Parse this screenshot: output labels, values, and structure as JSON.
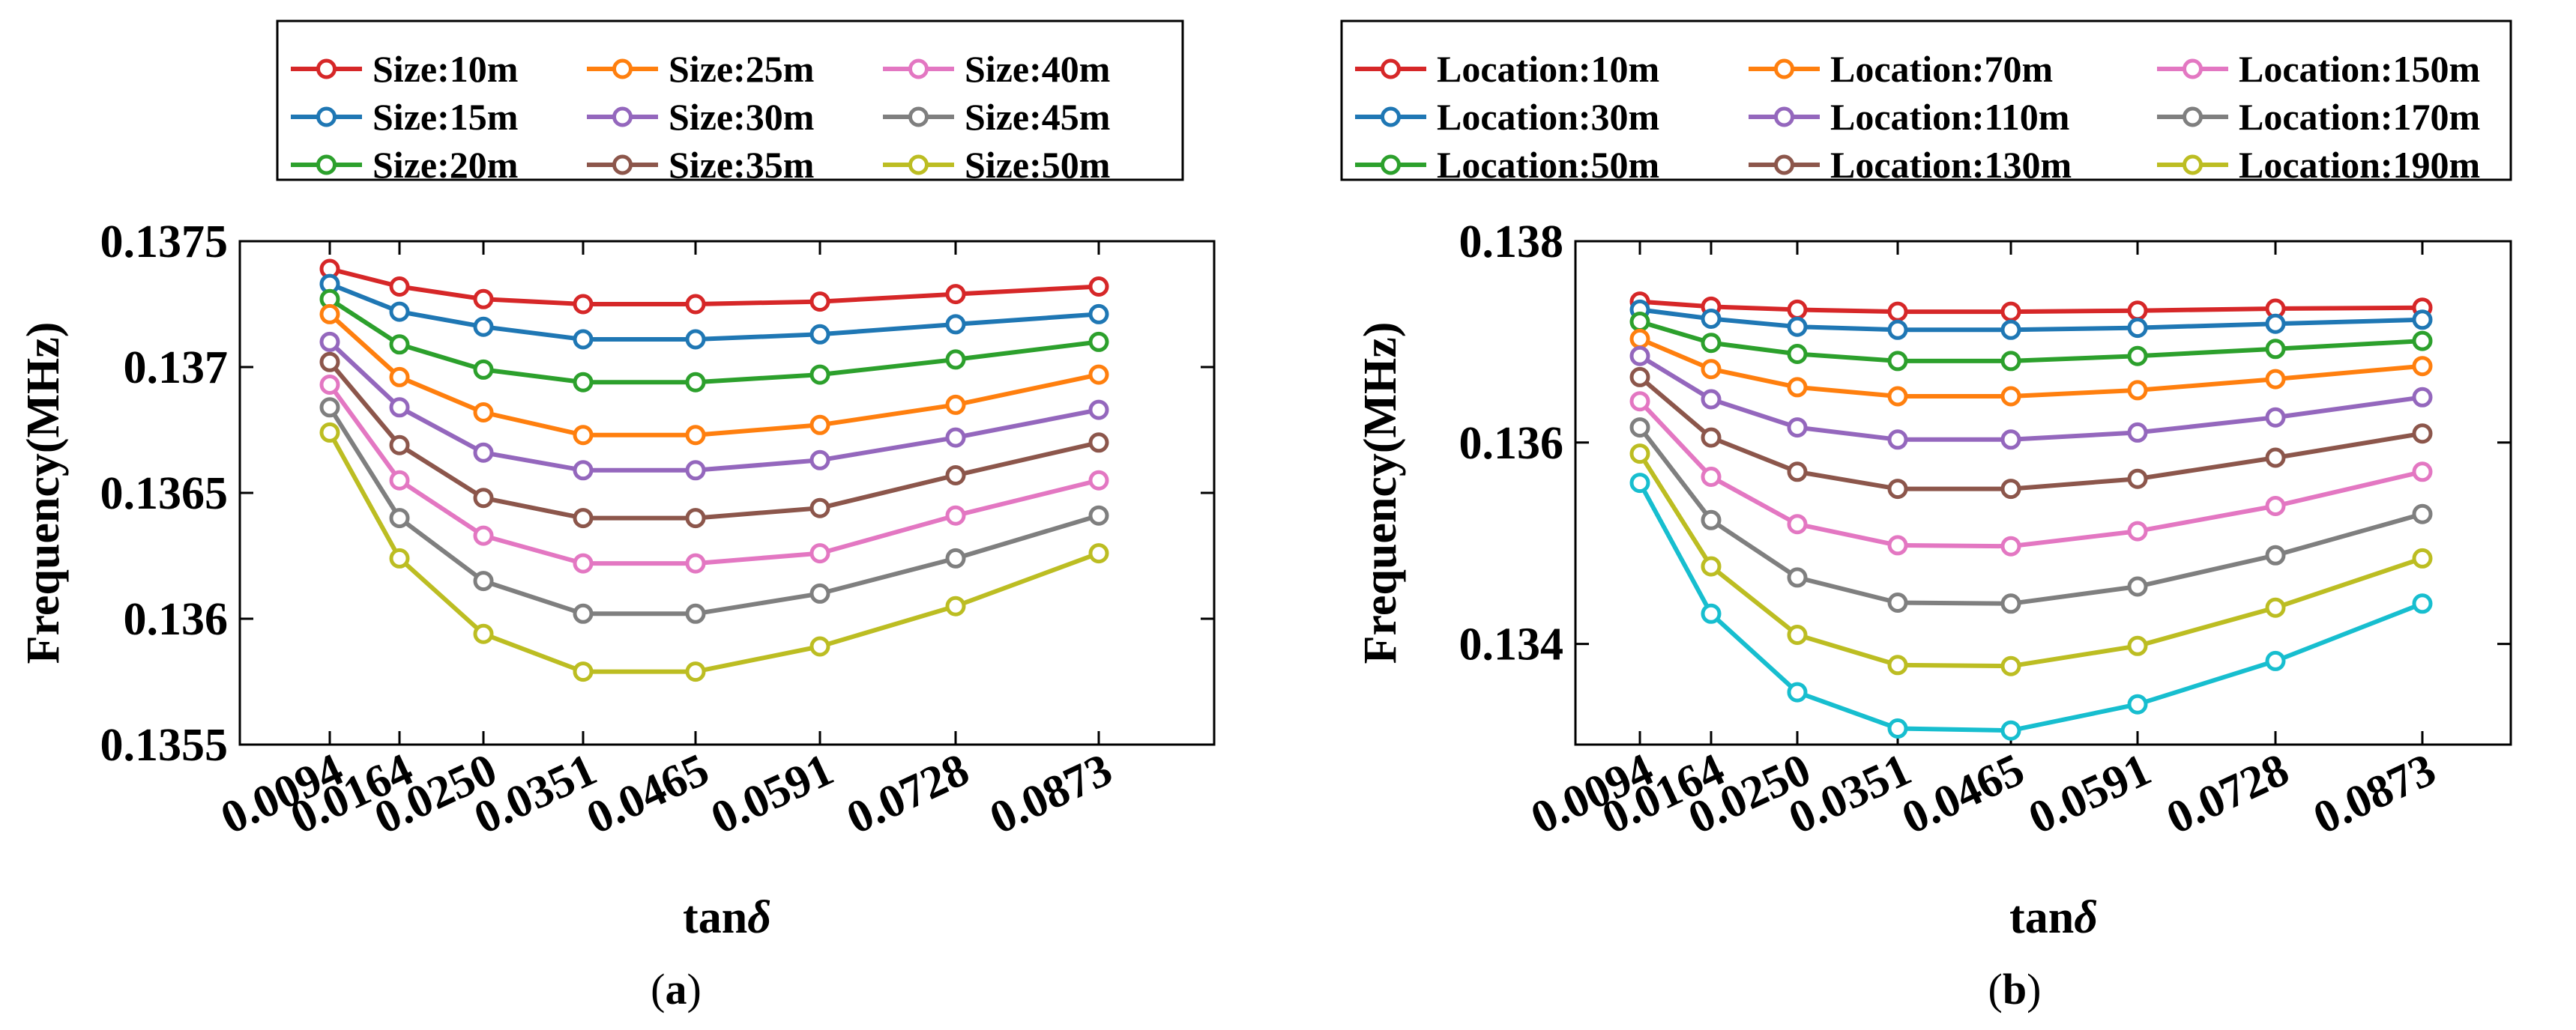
{
  "chart_data": [
    {
      "type": "line",
      "panel": "a",
      "caption": "(a)",
      "caption_letter": "a",
      "xlabel_main": "tan",
      "xlabel_symbol": "δ",
      "ylabel": "Frequency(MHz)",
      "categories": [
        "0.0094",
        "0.0164",
        "0.0250",
        "0.0351",
        "0.0465",
        "0.0591",
        "0.0728",
        "0.0873"
      ],
      "x": [
        0.0094,
        0.0164,
        0.025,
        0.0351,
        0.0465,
        0.0591,
        0.0728,
        0.0873
      ],
      "ylim": [
        0.1355,
        0.1375
      ],
      "yticks": [
        0.1355,
        0.136,
        0.1365,
        0.137,
        0.1375
      ],
      "ytick_labels": [
        "0.1355",
        "0.136",
        "0.1365",
        "0.137",
        "0.1375"
      ],
      "legend_columns": 3,
      "legend_position": "top",
      "series": [
        {
          "name": "Size:10m",
          "color": "#d62728",
          "values": [
            0.13739,
            0.13732,
            0.13727,
            0.13725,
            0.13725,
            0.13726,
            0.13729,
            0.13732
          ]
        },
        {
          "name": "Size:15m",
          "color": "#1f77b4",
          "values": [
            0.13733,
            0.13722,
            0.13716,
            0.13711,
            0.13711,
            0.13713,
            0.13717,
            0.13721
          ]
        },
        {
          "name": "Size:20m",
          "color": "#2ca02c",
          "values": [
            0.13727,
            0.13709,
            0.13699,
            0.13694,
            0.13694,
            0.13697,
            0.13703,
            0.1371
          ]
        },
        {
          "name": "Size:25m",
          "color": "#ff7f0e",
          "values": [
            0.13721,
            0.13696,
            0.13682,
            0.13673,
            0.13673,
            0.13677,
            0.13685,
            0.13697
          ]
        },
        {
          "name": "Size:30m",
          "color": "#9467bd",
          "values": [
            0.1371,
            0.13684,
            0.13666,
            0.13659,
            0.13659,
            0.13663,
            0.13672,
            0.13683
          ]
        },
        {
          "name": "Size:35m",
          "color": "#8c564b",
          "values": [
            0.13702,
            0.13669,
            0.13648,
            0.1364,
            0.1364,
            0.13644,
            0.13657,
            0.1367
          ]
        },
        {
          "name": "Size:40m",
          "color": "#e377c2",
          "values": [
            0.13693,
            0.13655,
            0.13633,
            0.13622,
            0.13622,
            0.13626,
            0.13641,
            0.13655
          ]
        },
        {
          "name": "Size:45m",
          "color": "#7f7f7f",
          "values": [
            0.13684,
            0.1364,
            0.13615,
            0.13602,
            0.13602,
            0.1361,
            0.13624,
            0.13641
          ]
        },
        {
          "name": "Size:50m",
          "color": "#bcbd22",
          "values": [
            0.13674,
            0.13624,
            0.13594,
            0.13579,
            0.13579,
            0.13589,
            0.13605,
            0.13626
          ]
        }
      ]
    },
    {
      "type": "line",
      "panel": "b",
      "caption": "(b)",
      "caption_letter": "b",
      "xlabel_main": "tan",
      "xlabel_symbol": "δ",
      "ylabel": "Frequency(MHz)",
      "categories": [
        "0.0094",
        "0.0164",
        "0.0250",
        "0.0351",
        "0.0465",
        "0.0591",
        "0.0728",
        "0.0873"
      ],
      "x": [
        0.0094,
        0.0164,
        0.025,
        0.0351,
        0.0465,
        0.0591,
        0.0728,
        0.0873
      ],
      "ylim": [
        0.133,
        0.138
      ],
      "yticks": [
        0.134,
        0.136,
        0.138
      ],
      "ytick_labels": [
        "0.134",
        "0.136",
        "0.138"
      ],
      "legend_columns": 3,
      "legend_position": "top",
      "series": [
        {
          "name": "Location:10m",
          "color": "#d62728",
          "values": [
            0.1374,
            0.13735,
            0.13732,
            0.1373,
            0.1373,
            0.13731,
            0.13733,
            0.13734
          ]
        },
        {
          "name": "Location:30m",
          "color": "#1f77b4",
          "values": [
            0.13732,
            0.13723,
            0.13715,
            0.13712,
            0.13712,
            0.13714,
            0.13718,
            0.13722
          ]
        },
        {
          "name": "Location:50m",
          "color": "#2ca02c",
          "values": [
            0.1372,
            0.13699,
            0.13688,
            0.13681,
            0.13681,
            0.13686,
            0.13693,
            0.13701
          ]
        },
        {
          "name": "Location:70m",
          "color": "#ff7f0e",
          "values": [
            0.13703,
            0.13673,
            0.13655,
            0.13646,
            0.13646,
            0.13652,
            0.13663,
            0.13676
          ]
        },
        {
          "name": "Location:110m",
          "color": "#9467bd",
          "values": [
            0.13686,
            0.13643,
            0.13615,
            0.13603,
            0.13603,
            0.1361,
            0.13625,
            0.13645
          ]
        },
        {
          "name": "Location:130m",
          "color": "#8c564b",
          "values": [
            0.13665,
            0.13605,
            0.13571,
            0.13554,
            0.13554,
            0.13564,
            0.13585,
            0.13609
          ]
        },
        {
          "name": "Location:150m",
          "color": "#e377c2",
          "values": [
            0.13641,
            0.13566,
            0.13519,
            0.13498,
            0.13497,
            0.13512,
            0.13537,
            0.13571
          ]
        },
        {
          "name": "Location:170m",
          "color": "#7f7f7f",
          "values": [
            0.13615,
            0.13523,
            0.13466,
            0.13441,
            0.1344,
            0.13457,
            0.13488,
            0.13529
          ]
        },
        {
          "name": "Location:190m",
          "color": "#bcbd22",
          "values": [
            0.13589,
            0.13477,
            0.13409,
            0.13379,
            0.13378,
            0.13398,
            0.13436,
            0.13485
          ]
        },
        {
          "name": "",
          "color": "#17becf",
          "values": [
            0.1356,
            0.1343,
            0.13352,
            0.13316,
            0.13314,
            0.1334,
            0.13383,
            0.1344
          ]
        }
      ]
    }
  ]
}
